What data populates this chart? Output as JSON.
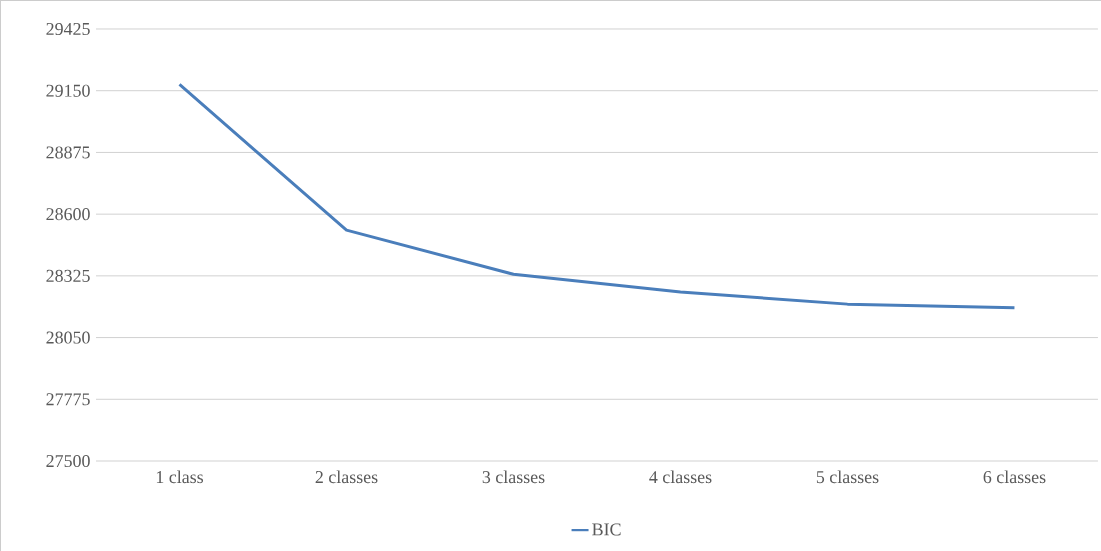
{
  "chart_data": {
    "type": "line",
    "categories": [
      "1 class",
      "2 classes",
      "3 classes",
      "4 classes",
      "5 classes",
      "6 classes"
    ],
    "series": [
      {
        "name": "BIC",
        "color": "#4a7ebb",
        "values": [
          29178,
          28529,
          28332,
          28253,
          28199,
          28183
        ]
      }
    ],
    "ylim": [
      27500,
      29425
    ],
    "yticks": [
      27500,
      27775,
      28050,
      28325,
      28600,
      28875,
      29150,
      29425
    ],
    "grid": "y",
    "legend": "bottom",
    "marker": "none",
    "line_style": "solid"
  }
}
